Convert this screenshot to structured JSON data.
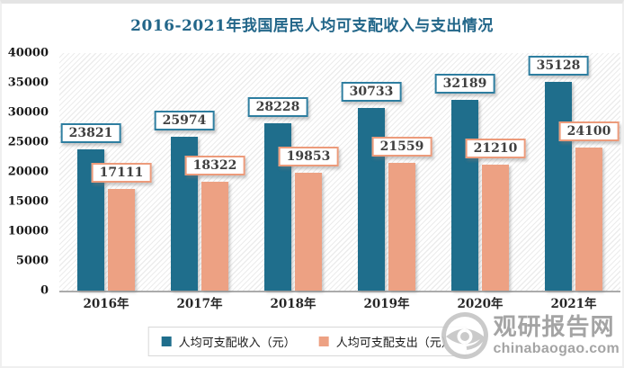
{
  "chart_data": {
    "type": "bar",
    "title": "2016-2021年我国居民人均可支配收入与支出情况",
    "title_color": "#226689",
    "categories": [
      "2016年",
      "2017年",
      "2018年",
      "2019年",
      "2020年",
      "2021年"
    ],
    "series": [
      {
        "name": "人均可支配收入（元）",
        "color": "#1F6E8C",
        "label_border_color": "#2E7EA0",
        "values": [
          23821,
          25974,
          28228,
          30733,
          32189,
          35128
        ]
      },
      {
        "name": "人均可支配支出（元）",
        "color": "#EDA183",
        "label_border_color": "#EC9B7B",
        "values": [
          17111,
          18322,
          19853,
          21559,
          21210,
          24100
        ]
      }
    ],
    "ylim": [
      0,
      40000
    ],
    "yticks": [
      0,
      5000,
      10000,
      15000,
      20000,
      25000,
      30000,
      35000,
      40000
    ],
    "grid": false,
    "legend_position": "bottom",
    "plot_background": "diagonal-hatch",
    "axis_line_color": "#ABABAB"
  },
  "watermark": {
    "name": "观研报告网",
    "domain": "chinabaogao.com",
    "color": "#9D9D9D",
    "logo": "eye-logo"
  }
}
